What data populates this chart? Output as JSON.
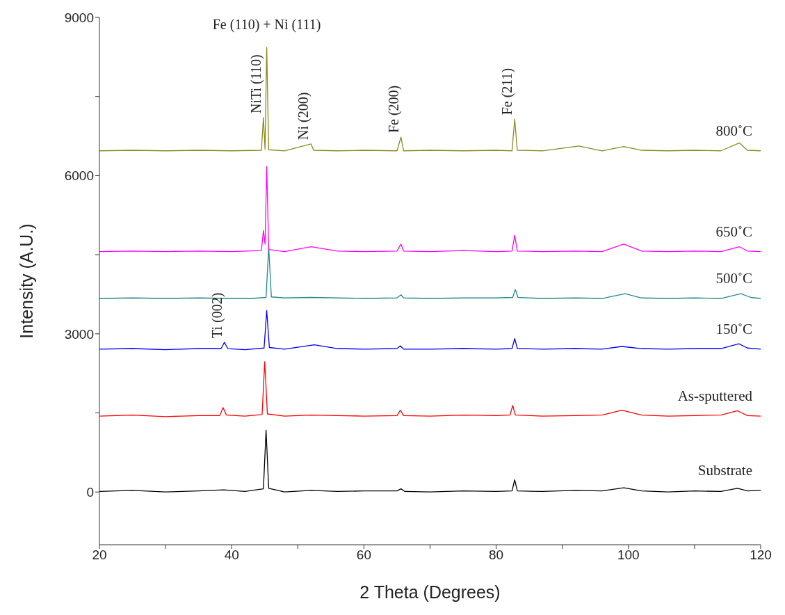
{
  "chart_data": {
    "type": "line",
    "xlabel": "2 Theta (Degrees)",
    "ylabel": "Intensity (A.U.)",
    "xlim": [
      20,
      120
    ],
    "xticks": [
      20,
      {
        "value": 30,
        "label": null
      },
      40,
      {
        "value": 50,
        "label": null
      },
      60,
      {
        "value": 70,
        "label": null
      },
      80,
      {
        "value": 90,
        "label": null
      },
      100,
      {
        "value": 110,
        "label": null
      },
      120
    ],
    "ylim": [
      -1000,
      9000
    ],
    "yticks": [
      0,
      {
        "value": 1500,
        "label": null
      },
      3000,
      {
        "value": 4500,
        "label": null
      },
      6000,
      {
        "value": 7500,
        "label": null
      },
      9000
    ],
    "grid": false,
    "legend": false,
    "marker": "none",
    "line_style": "solid",
    "series": [
      {
        "name": "Substrate",
        "color": "#000000",
        "x": [
          20,
          25,
          30,
          35,
          38.8,
          42,
          44.8,
          45.2,
          45.6,
          48,
          52,
          56,
          60,
          65,
          65.6,
          66.2,
          70,
          75,
          80,
          82.4,
          82.8,
          83.2,
          87,
          92,
          96,
          99.3,
          102,
          106,
          110,
          114,
          116.5,
          118,
          120
        ],
        "values": [
          10,
          30,
          0,
          20,
          40,
          10,
          60,
          1170,
          70,
          0,
          30,
          10,
          20,
          20,
          60,
          10,
          0,
          20,
          10,
          20,
          230,
          20,
          10,
          30,
          20,
          80,
          20,
          0,
          20,
          10,
          70,
          20,
          30
        ]
      },
      {
        "name": "As-sputtered",
        "color": "#ff0000",
        "x": [
          20,
          25,
          30,
          35,
          38.2,
          38.7,
          39.2,
          42,
          44.6,
          45.0,
          45.4,
          48,
          52,
          56,
          60,
          65,
          65.5,
          66,
          70,
          75,
          80,
          82.1,
          82.5,
          82.9,
          87,
          92,
          96,
          99,
          102,
          106,
          110,
          114,
          116.5,
          118,
          120
        ],
        "values": [
          1440,
          1460,
          1430,
          1450,
          1450,
          1600,
          1460,
          1440,
          1470,
          2470,
          1480,
          1440,
          1460,
          1450,
          1440,
          1450,
          1550,
          1450,
          1440,
          1460,
          1450,
          1460,
          1640,
          1460,
          1440,
          1450,
          1460,
          1550,
          1460,
          1440,
          1450,
          1460,
          1540,
          1450,
          1440
        ]
      },
      {
        "name": "150˚C",
        "color": "#0000ff",
        "x": [
          20,
          25,
          30,
          35,
          38.4,
          38.9,
          39.4,
          42,
          44.9,
          45.3,
          45.7,
          48,
          52.5,
          56,
          60,
          65,
          65.5,
          66,
          70,
          75,
          80,
          82.4,
          82.8,
          83.2,
          87,
          92,
          96,
          99,
          102,
          106,
          110,
          114,
          116.7,
          118,
          120
        ],
        "values": [
          2710,
          2720,
          2700,
          2720,
          2720,
          2840,
          2720,
          2700,
          2730,
          3440,
          2740,
          2710,
          2790,
          2720,
          2710,
          2720,
          2770,
          2710,
          2710,
          2720,
          2710,
          2720,
          2910,
          2720,
          2710,
          2720,
          2710,
          2760,
          2720,
          2710,
          2720,
          2720,
          2810,
          2730,
          2710
        ]
      },
      {
        "name": "500˚C",
        "color": "#1f8a8a",
        "x": [
          20,
          25,
          30,
          35,
          40,
          43,
          45.2,
          45.6,
          46.0,
          48,
          52,
          56,
          60,
          65,
          65.6,
          66,
          70,
          75,
          80,
          82.5,
          82.9,
          83.3,
          87,
          92,
          96,
          99.5,
          102,
          106,
          110,
          114,
          117,
          118.5,
          120
        ],
        "values": [
          3670,
          3680,
          3670,
          3680,
          3670,
          3670,
          3690,
          4640,
          3700,
          3680,
          3690,
          3680,
          3670,
          3680,
          3740,
          3680,
          3670,
          3680,
          3680,
          3690,
          3840,
          3690,
          3670,
          3680,
          3670,
          3760,
          3680,
          3670,
          3680,
          3670,
          3760,
          3690,
          3670
        ]
      },
      {
        "name": "650˚C",
        "color": "#ff00ff",
        "x": [
          20,
          25,
          30,
          35,
          40,
          44.5,
          44.8,
          45.05,
          45.3,
          45.6,
          48,
          52,
          56,
          60,
          65,
          65.6,
          66,
          70,
          75,
          80,
          82.4,
          82.8,
          83.2,
          87,
          92,
          96,
          99.3,
          102,
          106,
          110,
          114,
          116.8,
          118,
          120
        ],
        "values": [
          4560,
          4570,
          4560,
          4570,
          4560,
          4580,
          4960,
          4700,
          6170,
          4600,
          4560,
          4650,
          4570,
          4560,
          4570,
          4700,
          4570,
          4560,
          4580,
          4560,
          4570,
          4870,
          4570,
          4560,
          4570,
          4560,
          4700,
          4570,
          4560,
          4570,
          4560,
          4650,
          4570,
          4560
        ]
      },
      {
        "name": "800˚C",
        "color": "#8a8a1e",
        "x": [
          20,
          25,
          30,
          35,
          40,
          44.5,
          44.8,
          45.05,
          45.3,
          45.6,
          48,
          52,
          52.4,
          56,
          60,
          65,
          65.6,
          66,
          70,
          75,
          80,
          82.4,
          82.8,
          83.2,
          87,
          92.5,
          96,
          99.3,
          102,
          106,
          110,
          114,
          116.8,
          118,
          120
        ],
        "values": [
          6470,
          6480,
          6470,
          6480,
          6470,
          6480,
          7100,
          6500,
          8430,
          6490,
          6470,
          6600,
          6480,
          6470,
          6480,
          6470,
          6730,
          6470,
          6480,
          6470,
          6480,
          6470,
          7070,
          6480,
          6470,
          6560,
          6470,
          6550,
          6480,
          6470,
          6480,
          6470,
          6620,
          6480,
          6470
        ]
      }
    ],
    "annotations": [
      {
        "text": "Fe (110) + Ni (111)",
        "x": 45.3,
        "y": 8430
      },
      {
        "text": "NiTi (110)",
        "x": 44.8,
        "y": 7100
      },
      {
        "text": "Ni (200)",
        "x": 52,
        "y": 6600
      },
      {
        "text": "Fe (200)",
        "x": 65.6,
        "y": 6730
      },
      {
        "text": "Fe (211)",
        "x": 82.8,
        "y": 7070
      },
      {
        "text": "Ti (002)",
        "x": 38.9,
        "y": 2840
      }
    ]
  }
}
